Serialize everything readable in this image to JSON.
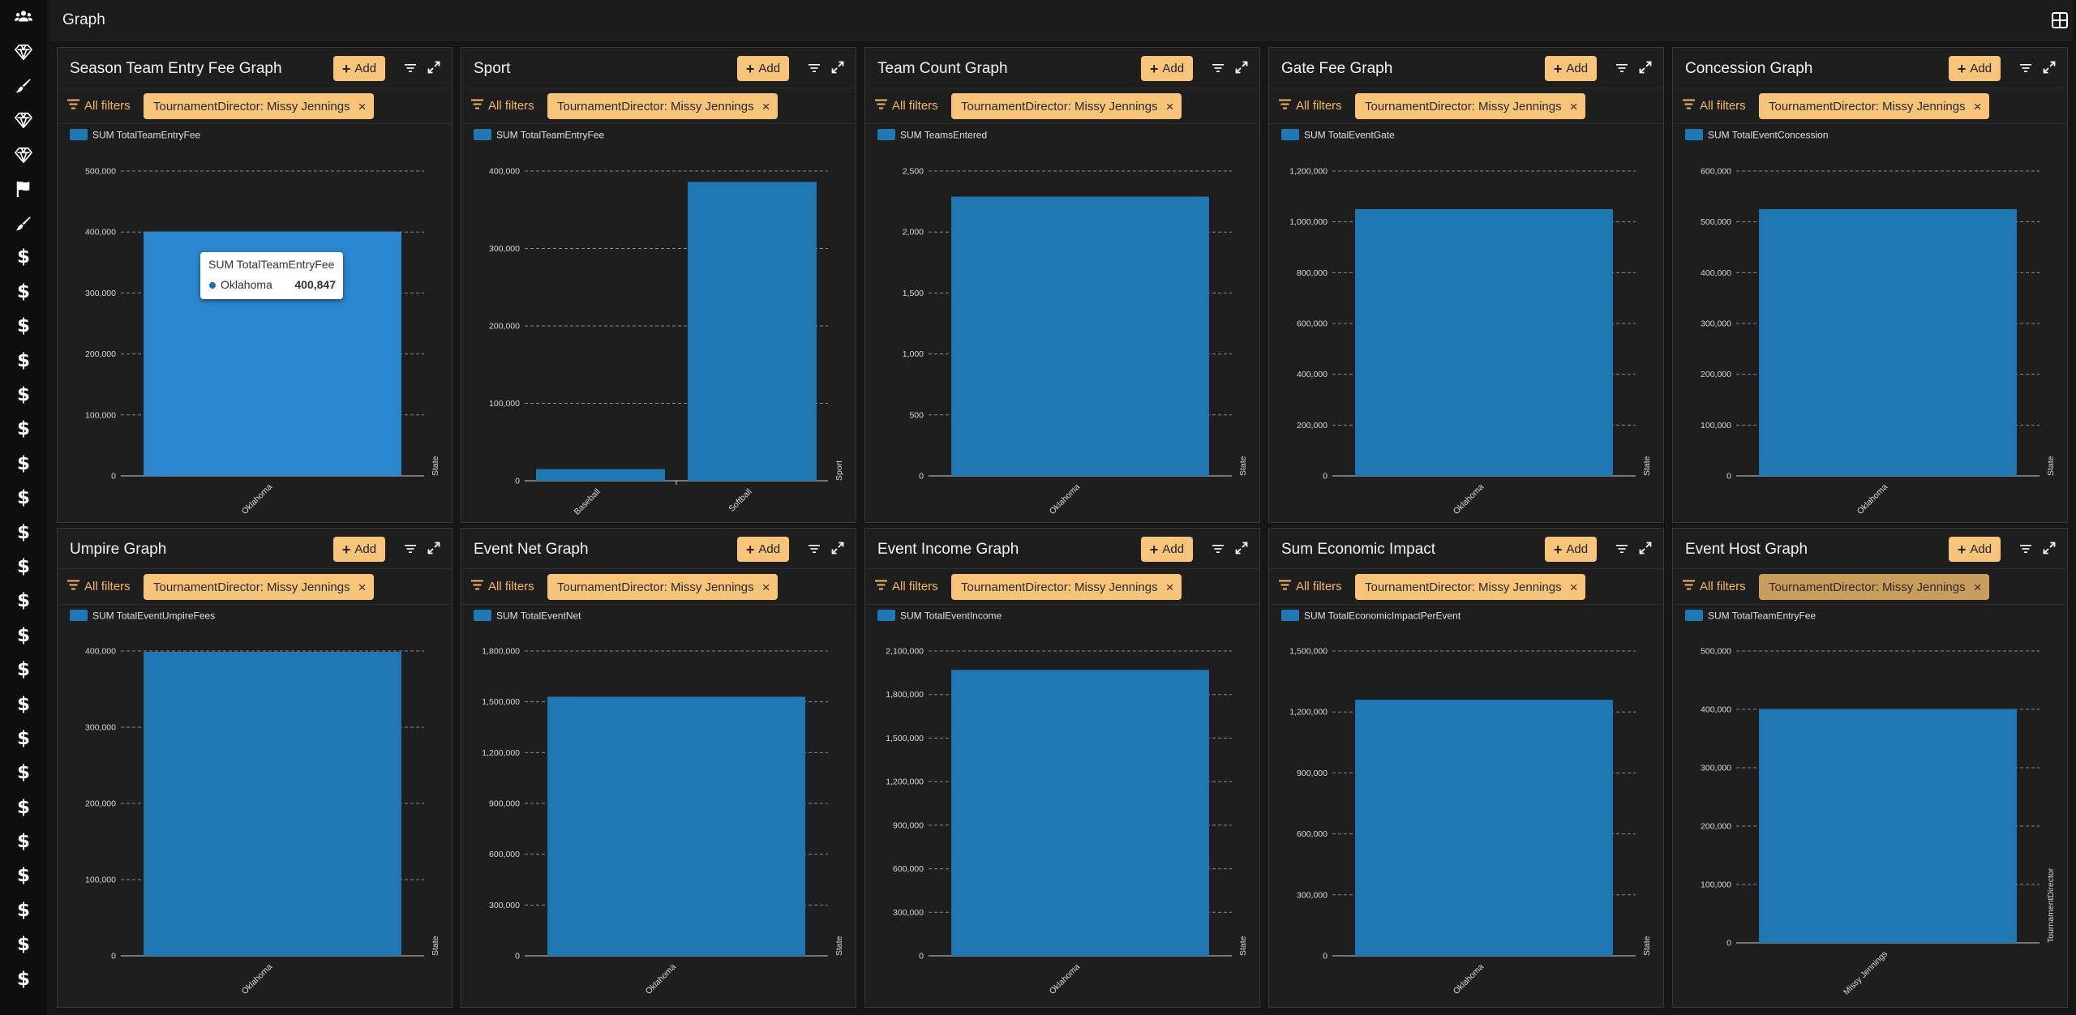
{
  "app": {
    "page_title": "Graph"
  },
  "sidebar": {
    "icons": [
      "users-icon",
      "diamond-icon",
      "pen-icon",
      "diamond-icon",
      "diamond-icon",
      "flag-icon",
      "pen-icon",
      "dollar-icon",
      "dollar-icon",
      "dollar-icon",
      "dollar-icon",
      "dollar-icon",
      "dollar-icon",
      "dollar-icon",
      "dollar-icon",
      "dollar-icon",
      "dollar-icon",
      "dollar-icon",
      "dollar-icon",
      "dollar-icon",
      "dollar-icon",
      "dollar-icon",
      "dollar-icon",
      "dollar-icon",
      "dollar-icon",
      "dollar-icon",
      "dollar-icon",
      "dollar-icon",
      "dollar-icon"
    ],
    "dollar_glyph": "$"
  },
  "common": {
    "add_label": "Add",
    "all_filters_label": "All filters",
    "filter_chip": "TournamentDirector: Missy Jennings"
  },
  "colors": {
    "bar": "#1f77b4",
    "bar_highlight": "#2a86cf",
    "accent": "#f7c47a",
    "filter_text": "#f4b860"
  },
  "tooltip": {
    "title": "SUM TotalTeamEntryFee",
    "label": "Oklahoma",
    "value": "400,847"
  },
  "panels": [
    {
      "title": "Season Team Entry Fee Graph"
    },
    {
      "title": "Sport"
    },
    {
      "title": "Team Count Graph"
    },
    {
      "title": "Gate Fee Graph"
    },
    {
      "title": "Concession Graph"
    },
    {
      "title": "Umpire Graph"
    },
    {
      "title": "Event Net Graph"
    },
    {
      "title": "Event Income Graph"
    },
    {
      "title": "Sum Economic Impact"
    },
    {
      "title": "Event Host Graph"
    }
  ],
  "chart_data": [
    {
      "type": "bar",
      "categories": [
        "Oklahoma"
      ],
      "series": [
        {
          "name": "SUM TotalTeamEntryFee",
          "values": [
            400847
          ]
        }
      ],
      "xlabel": "State",
      "ylim": [
        0,
        500000
      ],
      "yticks": [
        "0",
        "100,000",
        "200,000",
        "300,000",
        "400,000",
        "500,000"
      ],
      "grid": true,
      "legend": "top-left"
    },
    {
      "type": "bar",
      "categories": [
        "Baseball",
        "Softball"
      ],
      "series": [
        {
          "name": "SUM TotalTeamEntryFee",
          "values": [
            15000,
            386000
          ]
        }
      ],
      "xlabel": "Sport",
      "ylim": [
        0,
        400000
      ],
      "yticks": [
        "0",
        "100,000",
        "200,000",
        "300,000",
        "400,000"
      ],
      "grid": true,
      "legend": "top-left"
    },
    {
      "type": "bar",
      "categories": [
        "Oklahoma"
      ],
      "series": [
        {
          "name": "SUM TeamsEntered",
          "values": [
            2290
          ]
        }
      ],
      "xlabel": "State",
      "ylim": [
        0,
        2500
      ],
      "yticks": [
        "0",
        "500",
        "1,000",
        "1,500",
        "2,000",
        "2,500"
      ],
      "grid": true,
      "legend": "top-left"
    },
    {
      "type": "bar",
      "categories": [
        "Oklahoma"
      ],
      "series": [
        {
          "name": "SUM TotalEventGate",
          "values": [
            1050000
          ]
        }
      ],
      "xlabel": "State",
      "ylim": [
        0,
        1200000
      ],
      "yticks": [
        "0",
        "200,000",
        "400,000",
        "600,000",
        "800,000",
        "1,000,000",
        "1,200,000"
      ],
      "grid": true,
      "legend": "top-left"
    },
    {
      "type": "bar",
      "categories": [
        "Oklahoma"
      ],
      "series": [
        {
          "name": "SUM TotalEventConcession",
          "values": [
            525000
          ]
        }
      ],
      "xlabel": "State",
      "ylim": [
        0,
        600000
      ],
      "yticks": [
        "0",
        "100,000",
        "200,000",
        "300,000",
        "400,000",
        "500,000",
        "600,000"
      ],
      "grid": true,
      "legend": "top-left"
    },
    {
      "type": "bar",
      "categories": [
        "Oklahoma"
      ],
      "series": [
        {
          "name": "SUM TotalEventUmpireFees",
          "values": [
            399000
          ]
        }
      ],
      "xlabel": "State",
      "ylim": [
        0,
        400000
      ],
      "yticks": [
        "0",
        "100,000",
        "200,000",
        "300,000",
        "400,000"
      ],
      "grid": true,
      "legend": "top-left"
    },
    {
      "type": "bar",
      "categories": [
        "Oklahoma"
      ],
      "series": [
        {
          "name": "SUM TotalEventNet",
          "values": [
            1530000
          ]
        }
      ],
      "xlabel": "State",
      "ylim": [
        0,
        1800000
      ],
      "yticks": [
        "0",
        "300,000",
        "600,000",
        "900,000",
        "1,200,000",
        "1,500,000",
        "1,800,000"
      ],
      "grid": true,
      "legend": "top-left"
    },
    {
      "type": "bar",
      "categories": [
        "Oklahoma"
      ],
      "series": [
        {
          "name": "SUM TotalEventIncome",
          "values": [
            1970000
          ]
        }
      ],
      "xlabel": "State",
      "ylim": [
        0,
        2100000
      ],
      "yticks": [
        "0",
        "300,000",
        "600,000",
        "900,000",
        "1,200,000",
        "1,500,000",
        "1,800,000",
        "2,100,000"
      ],
      "grid": true,
      "legend": "top-left"
    },
    {
      "type": "bar",
      "categories": [
        "Oklahoma"
      ],
      "series": [
        {
          "name": "SUM TotalEconomicImpactPerEvent",
          "values": [
            1260000
          ]
        }
      ],
      "xlabel": "State",
      "ylim": [
        0,
        1500000
      ],
      "yticks": [
        "0",
        "300,000",
        "600,000",
        "900,000",
        "1,200,000",
        "1,500,000"
      ],
      "grid": true,
      "legend": "top-left"
    },
    {
      "type": "bar",
      "categories": [
        "Missy Jennings"
      ],
      "series": [
        {
          "name": "SUM TotalTeamEntryFee",
          "values": [
            400847
          ]
        }
      ],
      "xlabel": "TournamentDirector",
      "ylim": [
        0,
        500000
      ],
      "yticks": [
        "0",
        "100,000",
        "200,000",
        "300,000",
        "400,000",
        "500,000"
      ],
      "grid": true,
      "legend": "top-left"
    }
  ]
}
